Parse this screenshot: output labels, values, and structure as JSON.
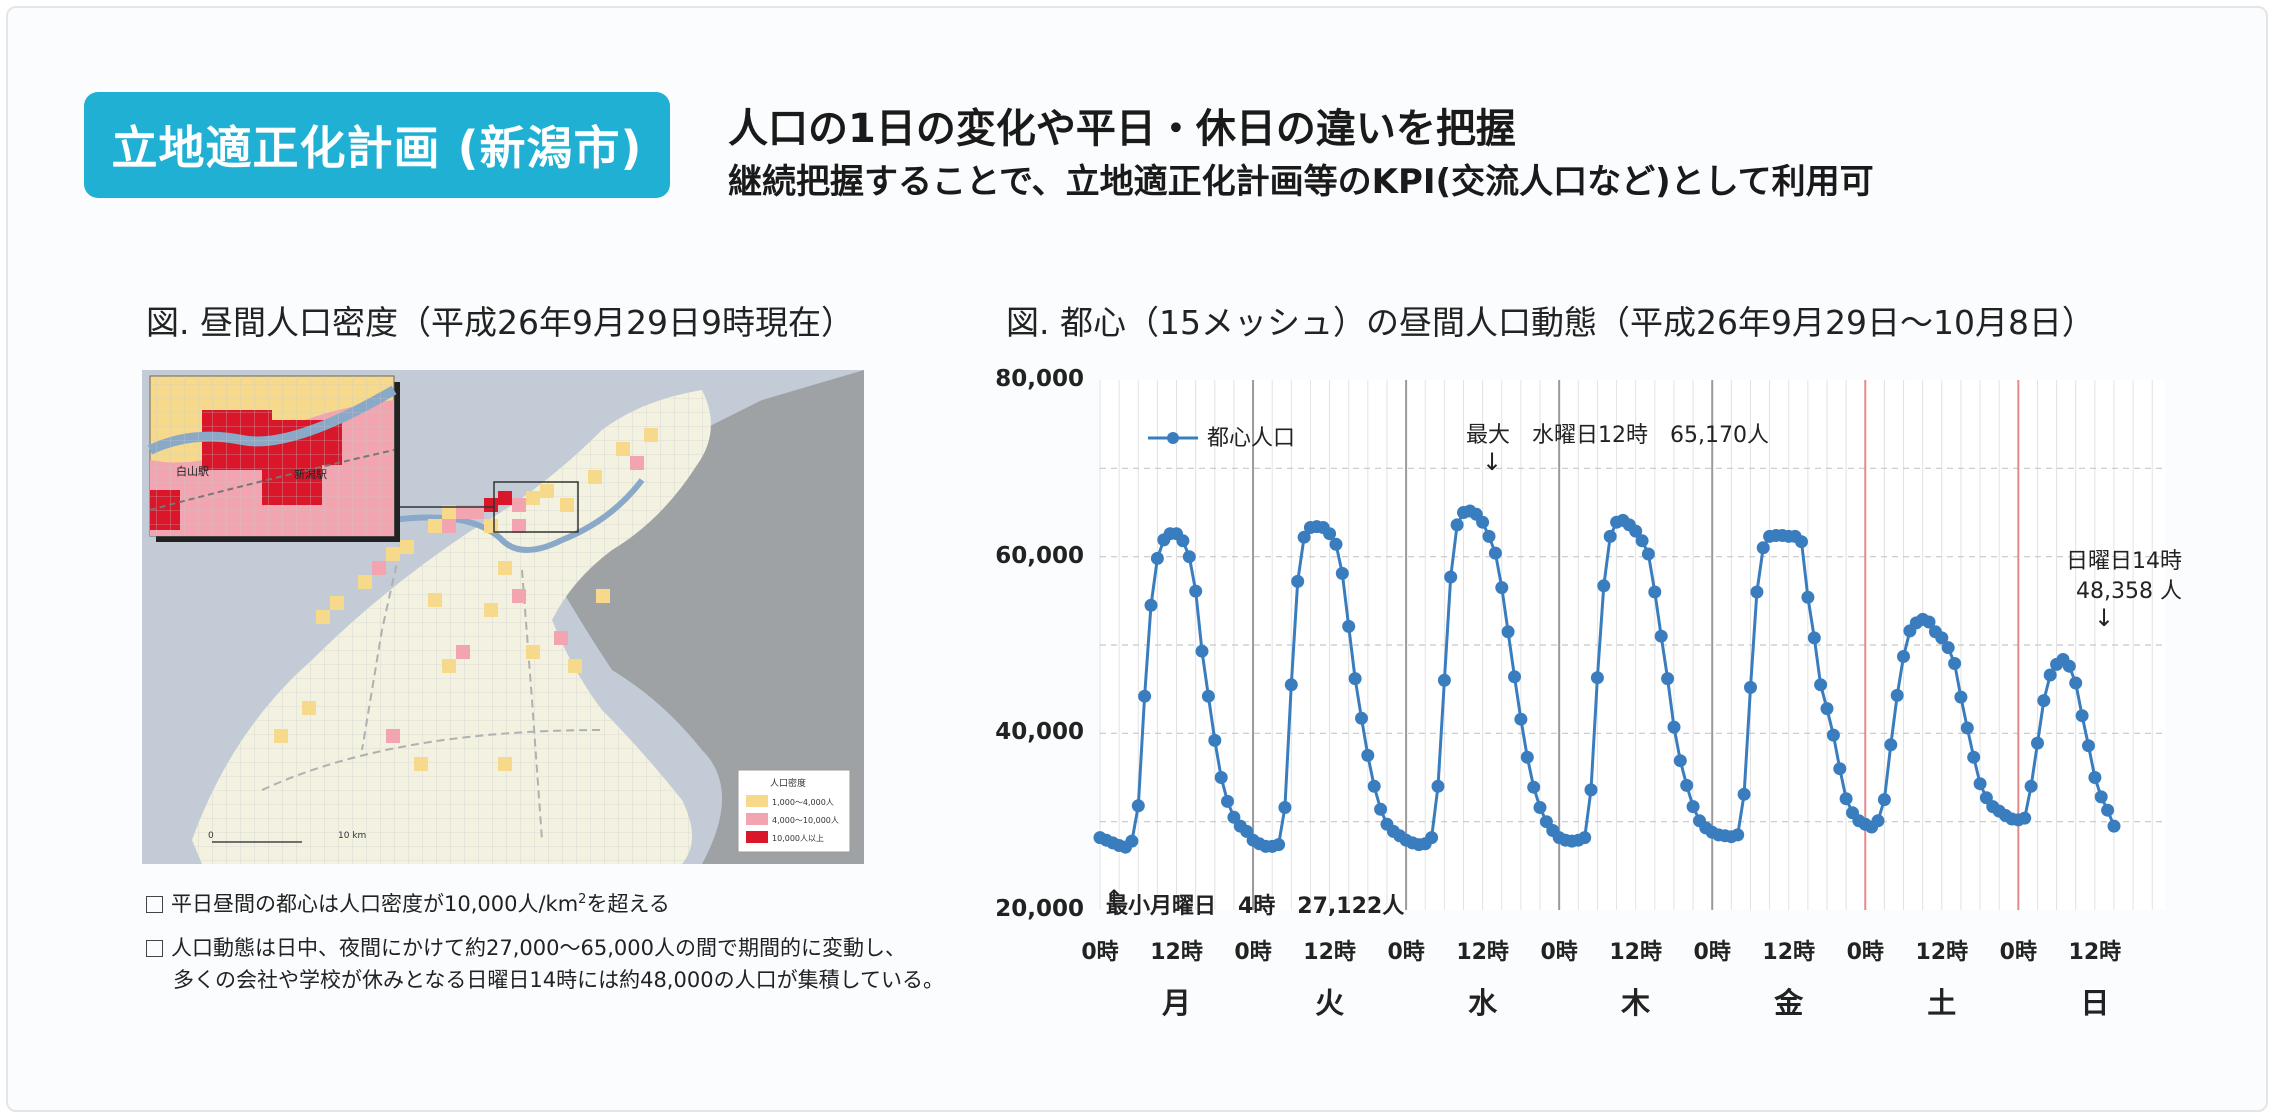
{
  "header": {
    "badge": "立地適正化計画 (新潟市)",
    "line1": "人口の1日の変化や平日・休日の違いを把握",
    "line2": "継続把握することで、立地適正化計画等のKPI(交流人口など)として利用可"
  },
  "map_panel": {
    "caption": "図. 昼間人口密度（平成26年9月29日9時現在）",
    "inset_labels": [
      "白山駅",
      "新潟駅"
    ],
    "legend_title": "人口密度",
    "legend_items": [
      {
        "label": "1,000〜4,000人",
        "color": "#f6d98a"
      },
      {
        "label": "4,000〜10,000人",
        "color": "#f2a5b0"
      },
      {
        "label": "10,000人以上",
        "color": "#d9162a"
      }
    ],
    "scale_label": "10 km",
    "scale_zero": "0",
    "note1_pre": "平日昼間の都心は人口密度が10,000人/km",
    "note1_sup": "2",
    "note1_post": "を超える",
    "note2_line1": "人口動態は日中、夜間にかけて約27,000〜65,000人の間で期間的に変動し、",
    "note2_line2": "多くの会社や学校が休みとなる日曜日14時には約48,000の人口が集積している。"
  },
  "chart_panel": {
    "caption": "図. 都心（15メッシュ）の昼間人口動態（平成26年9月29日〜10月8日）",
    "legend_label": "都心人口",
    "max_label": "最大",
    "max_text": "水曜日12時　65,170人",
    "min_text": "最小月曜日　4時　27,122人",
    "sun_line1": "日曜日14時",
    "sun_line2": "48,358 人",
    "arrow": "↓",
    "arrow_up": "↑"
  },
  "colors": {
    "accent": "#1fb0d3",
    "series": "#3a7dbf",
    "weekend_line": "#e58a8a"
  },
  "chart_data": {
    "type": "line",
    "title": "図. 都心（15メッシュ）の昼間人口動態（平成26年9月29日〜10月8日）",
    "xlabel": "",
    "ylabel": "",
    "ylim": [
      20000,
      80000
    ],
    "yticks": [
      "20,000",
      "40,000",
      "60,000",
      "80,000"
    ],
    "x_ticks": [
      {
        "label": "0時",
        "hour": 0
      },
      {
        "label": "12時",
        "hour": 12
      },
      {
        "label": "0時",
        "hour": 24
      },
      {
        "label": "12時",
        "hour": 36
      },
      {
        "label": "0時",
        "hour": 48
      },
      {
        "label": "12時",
        "hour": 60
      },
      {
        "label": "0時",
        "hour": 72
      },
      {
        "label": "12時",
        "hour": 84
      },
      {
        "label": "0時",
        "hour": 96
      },
      {
        "label": "12時",
        "hour": 108
      },
      {
        "label": "0時",
        "hour": 120
      },
      {
        "label": "12時",
        "hour": 132
      },
      {
        "label": "0時",
        "hour": 144
      },
      {
        "label": "12時",
        "hour": 156
      }
    ],
    "days": [
      {
        "label": "月",
        "hour": 12
      },
      {
        "label": "火",
        "hour": 36
      },
      {
        "label": "水",
        "hour": 60
      },
      {
        "label": "木",
        "hour": 84
      },
      {
        "label": "金",
        "hour": 108
      },
      {
        "label": "土",
        "hour": 132
      },
      {
        "label": "日",
        "hour": 156
      }
    ],
    "grid": true,
    "legend": "top-left",
    "series": [
      {
        "name": "都心人口",
        "values": [
          28200,
          27900,
          27600,
          27300,
          27122,
          27800,
          31800,
          44200,
          54500,
          59800,
          61900,
          62600,
          62600,
          61800,
          60000,
          56100,
          49300,
          44200,
          39200,
          35000,
          32300,
          30500,
          29500,
          28900,
          27900,
          27500,
          27200,
          27200,
          27400,
          31600,
          45500,
          57200,
          62200,
          63300,
          63400,
          63300,
          62600,
          61400,
          58100,
          52100,
          46200,
          41700,
          37500,
          34000,
          31400,
          29700,
          28900,
          28400,
          27900,
          27600,
          27400,
          27500,
          28200,
          34000,
          46000,
          57700,
          63600,
          65000,
          65170,
          64800,
          63900,
          62300,
          60400,
          56500,
          51500,
          46400,
          41600,
          37300,
          33900,
          31600,
          30000,
          29000,
          28200,
          27900,
          27800,
          27900,
          28200,
          33600,
          46300,
          56700,
          62300,
          63900,
          64100,
          63600,
          62900,
          61800,
          60300,
          56000,
          51000,
          46200,
          40700,
          36900,
          34100,
          31700,
          30100,
          29300,
          28800,
          28500,
          28400,
          28300,
          28500,
          33100,
          45200,
          56000,
          61000,
          62300,
          62400,
          62400,
          62300,
          62300,
          61700,
          55400,
          50800,
          45500,
          42800,
          39800,
          36000,
          32600,
          31000,
          30100,
          29700,
          29400,
          30100,
          32500,
          38700,
          44300,
          48700,
          51600,
          52500,
          52900,
          52600,
          51500,
          50800,
          49700,
          47900,
          44100,
          40600,
          37300,
          34300,
          32700,
          31700,
          31200,
          30700,
          30300,
          30200,
          30400,
          34000,
          38900,
          43700,
          46600,
          47800,
          48358,
          47600,
          45700,
          42000,
          38600,
          35000,
          32800,
          31300,
          29500
        ]
      }
    ]
  }
}
